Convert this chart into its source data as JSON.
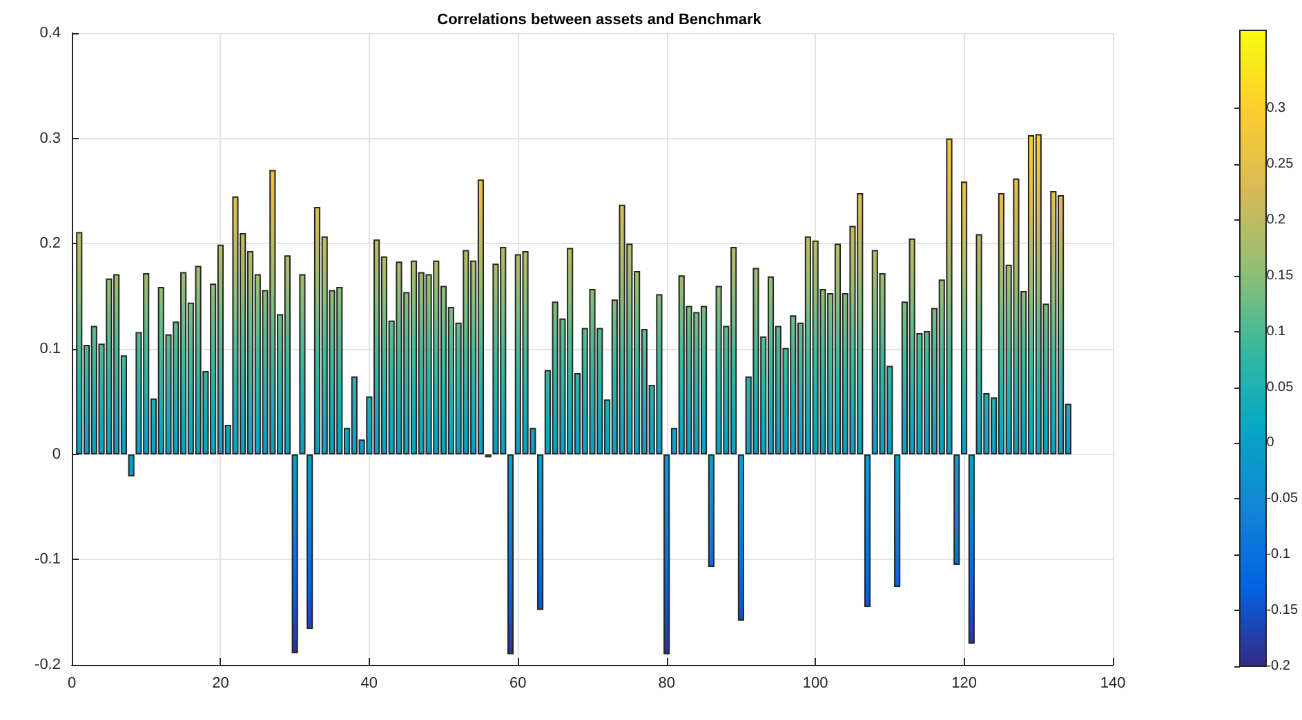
{
  "chart_data": {
    "type": "bar",
    "title": "Correlations between assets and Benchmark",
    "x": [
      1,
      2,
      3,
      4,
      5,
      6,
      7,
      8,
      9,
      10,
      11,
      12,
      13,
      14,
      15,
      16,
      17,
      18,
      19,
      20,
      21,
      22,
      23,
      24,
      25,
      26,
      27,
      28,
      29,
      30,
      31,
      32,
      33,
      34,
      35,
      36,
      37,
      38,
      39,
      40,
      41,
      42,
      43,
      44,
      45,
      46,
      47,
      48,
      49,
      50,
      51,
      52,
      53,
      54,
      55,
      56,
      57,
      58,
      59,
      60,
      61,
      62,
      63,
      64,
      65,
      66,
      67,
      68,
      69,
      70,
      71,
      72,
      73,
      74,
      75,
      76,
      77,
      78,
      79,
      80,
      81,
      82,
      83,
      84,
      85,
      86,
      87,
      88,
      89,
      90,
      91,
      92,
      93,
      94,
      95,
      96,
      97,
      98,
      99,
      100,
      101,
      102,
      103,
      104,
      105,
      106,
      107,
      108,
      109,
      110,
      111,
      112,
      113,
      114,
      115,
      116,
      117,
      118,
      119,
      120,
      121,
      122,
      123,
      124,
      125,
      126,
      127,
      128,
      129,
      130,
      131,
      132,
      133,
      134
    ],
    "values": [
      0.211,
      0.104,
      0.122,
      0.105,
      0.167,
      0.171,
      0.094,
      -0.021,
      0.116,
      0.172,
      0.053,
      0.159,
      0.114,
      0.126,
      0.173,
      0.144,
      0.179,
      0.079,
      0.162,
      0.199,
      0.028,
      0.245,
      0.21,
      0.193,
      0.171,
      0.156,
      0.27,
      0.133,
      0.189,
      -0.189,
      0.171,
      -0.166,
      0.235,
      0.207,
      0.156,
      0.159,
      0.025,
      0.074,
      0.014,
      0.055,
      0.204,
      0.188,
      0.127,
      0.183,
      0.154,
      0.184,
      0.173,
      0.171,
      0.184,
      0.16,
      0.14,
      0.125,
      0.194,
      0.184,
      0.261,
      -0.003,
      0.181,
      0.197,
      -0.19,
      0.19,
      0.193,
      0.025,
      -0.148,
      0.08,
      0.145,
      0.129,
      0.196,
      0.077,
      0.12,
      0.157,
      0.12,
      0.052,
      0.147,
      0.237,
      0.2,
      0.174,
      0.119,
      0.066,
      0.152,
      -0.19,
      0.025,
      0.17,
      0.141,
      0.135,
      0.141,
      -0.107,
      0.16,
      0.122,
      0.197,
      -0.158,
      0.074,
      0.177,
      0.112,
      0.169,
      0.122,
      0.101,
      0.132,
      0.125,
      0.207,
      0.203,
      0.157,
      0.153,
      0.2,
      0.153,
      0.217,
      0.248,
      -0.145,
      0.194,
      0.172,
      0.084,
      -0.126,
      0.145,
      0.205,
      0.115,
      0.117,
      0.139,
      0.166,
      0.3,
      -0.105,
      0.259,
      -0.18,
      0.209,
      0.058,
      0.054,
      0.248,
      0.18,
      0.262,
      0.155,
      0.303,
      0.304,
      0.143,
      0.25,
      0.246,
      0.048
    ],
    "xlim": [
      0,
      140
    ],
    "xticks": [
      0,
      20,
      40,
      60,
      80,
      100,
      120,
      140
    ],
    "ylim": [
      -0.2,
      0.4
    ],
    "yticks": [
      -0.2,
      -0.1,
      0,
      0.1,
      0.2,
      0.3,
      0.4
    ],
    "grid": true,
    "clim": [
      -0.2,
      0.37
    ],
    "cticks": [
      -0.2,
      -0.15,
      -0.1,
      -0.05,
      0,
      0.05,
      0.1,
      0.15,
      0.2,
      0.25,
      0.3
    ]
  }
}
